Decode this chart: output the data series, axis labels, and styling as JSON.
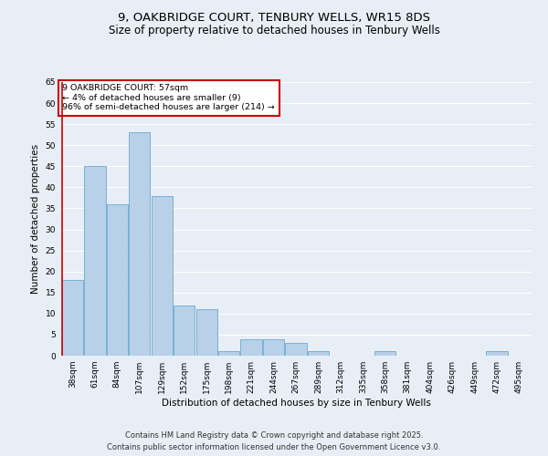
{
  "title_line1": "9, OAKBRIDGE COURT, TENBURY WELLS, WR15 8DS",
  "title_line2": "Size of property relative to detached houses in Tenbury Wells",
  "xlabel": "Distribution of detached houses by size in Tenbury Wells",
  "ylabel": "Number of detached properties",
  "categories": [
    "38sqm",
    "61sqm",
    "84sqm",
    "107sqm",
    "129sqm",
    "152sqm",
    "175sqm",
    "198sqm",
    "221sqm",
    "244sqm",
    "267sqm",
    "289sqm",
    "312sqm",
    "335sqm",
    "358sqm",
    "381sqm",
    "404sqm",
    "426sqm",
    "449sqm",
    "472sqm",
    "495sqm"
  ],
  "values": [
    18,
    45,
    36,
    53,
    38,
    12,
    11,
    1,
    4,
    4,
    3,
    1,
    0,
    0,
    1,
    0,
    0,
    0,
    0,
    1,
    0
  ],
  "bar_color": "#b8d0e8",
  "bar_edgecolor": "#6aaad4",
  "annotation_text": "9 OAKBRIDGE COURT: 57sqm\n← 4% of detached houses are smaller (9)\n96% of semi-detached houses are larger (214) →",
  "annotation_box_color": "#ffffff",
  "annotation_box_edgecolor": "#cc0000",
  "vline_color": "#cc0000",
  "ylim": [
    0,
    65
  ],
  "yticks": [
    0,
    5,
    10,
    15,
    20,
    25,
    30,
    35,
    40,
    45,
    50,
    55,
    60,
    65
  ],
  "background_color": "#e8eef5",
  "grid_color": "#ffffff",
  "footer_line1": "Contains HM Land Registry data © Crown copyright and database right 2025.",
  "footer_line2": "Contains public sector information licensed under the Open Government Licence v3.0.",
  "title_fontsize": 9.5,
  "subtitle_fontsize": 8.5,
  "axis_label_fontsize": 7.5,
  "tick_fontsize": 6.5,
  "annotation_fontsize": 6.8,
  "footer_fontsize": 6.0
}
